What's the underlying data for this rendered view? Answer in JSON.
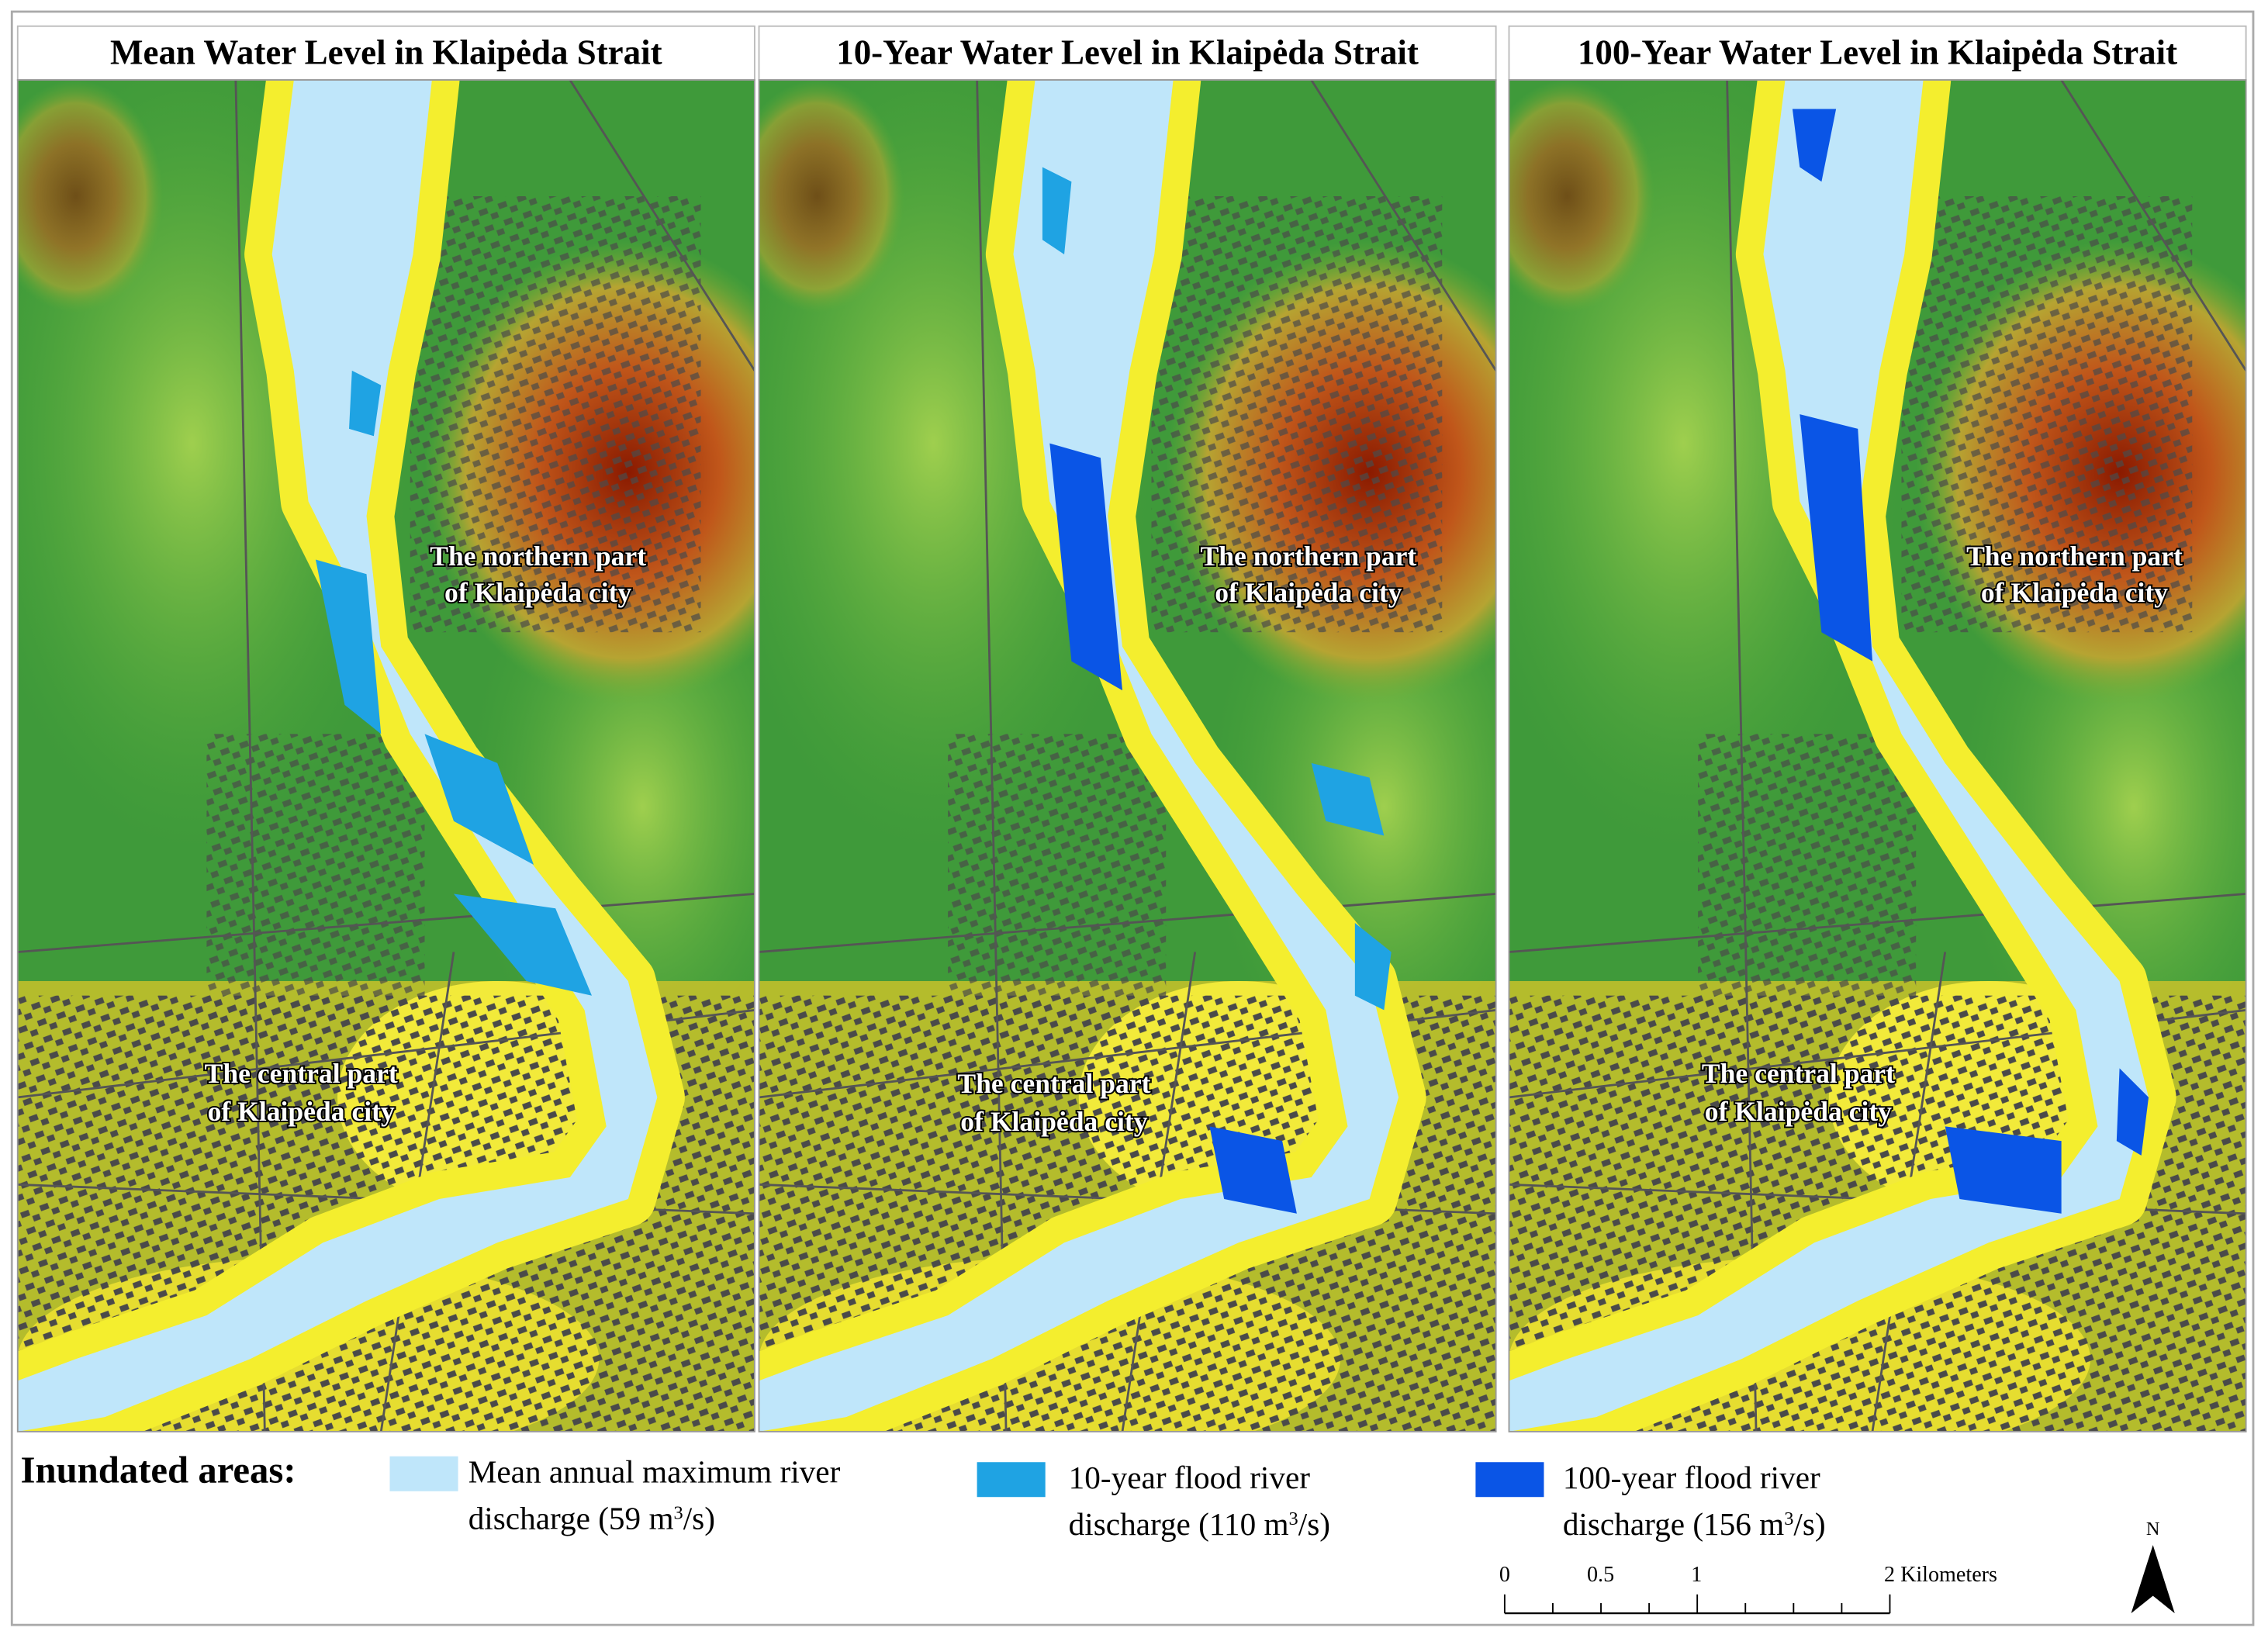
{
  "panels": [
    {
      "title": "Mean Water Level in Klaipėda Strait",
      "north_label": [
        "The northern part",
        "of Klaipėda city"
      ],
      "central_label": [
        "The central part",
        "of Klaipėda city"
      ]
    },
    {
      "title": "10-Year Water Level in Klaipėda Strait",
      "north_label": [
        "The northern part",
        "of Klaipėda city"
      ],
      "central_label": [
        "The central part",
        "of Klaipėda city"
      ]
    },
    {
      "title": "100-Year Water Level in Klaipėda Strait",
      "north_label": [
        "The northern part",
        "of Klaipėda city"
      ],
      "central_label": [
        "The central part",
        "of Klaipėda city"
      ]
    }
  ],
  "legend": {
    "heading": "Inundated areas:",
    "items": [
      {
        "color": "#bfe6fa",
        "line1": "Mean annual maximum river",
        "line2": "discharge (59 m",
        "sup": "3",
        "line2_end": "/s)"
      },
      {
        "color": "#1fa3e3",
        "line1": "10-year flood river",
        "line2": "discharge (110 m",
        "sup": "3",
        "line2_end": "/s)"
      },
      {
        "color": "#0a55e6",
        "line1": "100-year flood river",
        "line2": "discharge (156 m",
        "sup": "3",
        "line2_end": "/s)"
      }
    ]
  },
  "scale_bar": {
    "labels": [
      "0",
      "0.5",
      "1",
      "2 Kilometers"
    ]
  },
  "north_arrow": {
    "label": "N"
  }
}
